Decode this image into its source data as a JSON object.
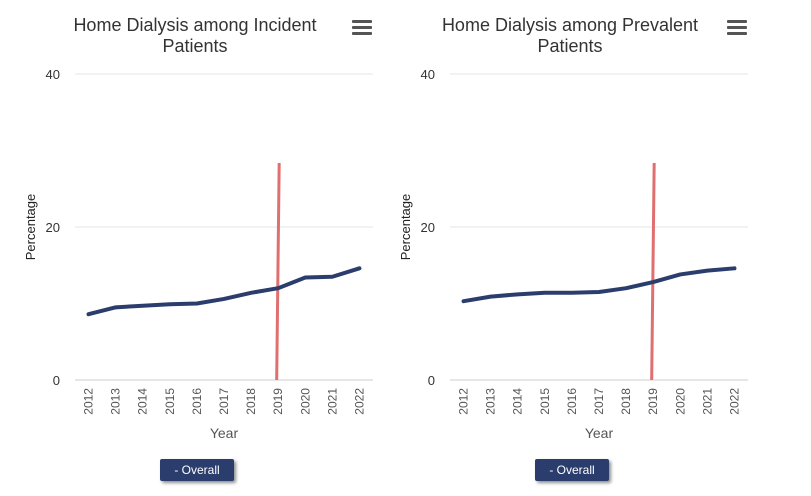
{
  "colors": {
    "series": "#2b3d6d",
    "marker_line": "#e07070",
    "grid": "#e6e6e6"
  },
  "chart_data": [
    {
      "type": "line",
      "title": "Home Dialysis among Incident Patients",
      "xlabel": "Year",
      "ylabel": "Percentage",
      "ylim": [
        0,
        40
      ],
      "yticks": [
        0,
        20,
        40
      ],
      "grid": true,
      "x": [
        "2012",
        "2013",
        "2014",
        "2015",
        "2016",
        "2017",
        "2018",
        "2019",
        "2020",
        "2021",
        "2022"
      ],
      "series": [
        {
          "name": "- Overall",
          "values": [
            8.6,
            9.5,
            9.7,
            9.9,
            10.0,
            10.6,
            11.4,
            12.0,
            13.4,
            13.5,
            14.6
          ]
        }
      ],
      "marker_line_year": "2019",
      "legend": {
        "label": "- Overall",
        "placement": "bottom"
      },
      "menu_icon": "hamburger-menu-icon"
    },
    {
      "type": "line",
      "title": "Home Dialysis among Prevalent Patients",
      "xlabel": "Year",
      "ylabel": "Percentage",
      "ylim": [
        0,
        40
      ],
      "yticks": [
        0,
        20,
        40
      ],
      "grid": true,
      "x": [
        "2012",
        "2013",
        "2014",
        "2015",
        "2016",
        "2017",
        "2018",
        "2019",
        "2020",
        "2021",
        "2022"
      ],
      "series": [
        {
          "name": "- Overall",
          "values": [
            10.3,
            10.9,
            11.2,
            11.4,
            11.4,
            11.5,
            12.0,
            12.8,
            13.8,
            14.3,
            14.6
          ]
        }
      ],
      "marker_line_year": "2019",
      "legend": {
        "label": "- Overall",
        "placement": "bottom"
      },
      "menu_icon": "hamburger-menu-icon"
    }
  ]
}
